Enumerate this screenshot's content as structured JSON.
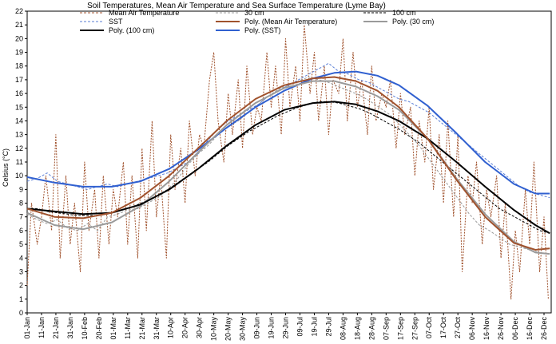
{
  "chart_data": {
    "type": "line",
    "title": "Soil Temperatures, Mean Air Temperature and Sea Surface Temperature (Lyme Bay)",
    "ylabel": "Celsius (°C)",
    "xlabel": "",
    "ylim": [
      0,
      22
    ],
    "y_ticks": [
      0,
      1,
      2,
      3,
      4,
      5,
      6,
      7,
      8,
      9,
      10,
      11,
      12,
      13,
      14,
      15,
      16,
      17,
      18,
      19,
      20,
      21,
      22
    ],
    "x_ticks": [
      {
        "day": 1,
        "label": "01-Jan"
      },
      {
        "day": 11,
        "label": "11-Jan"
      },
      {
        "day": 21,
        "label": "21-Jan"
      },
      {
        "day": 31,
        "label": "31-Jan"
      },
      {
        "day": 41,
        "label": "10-Feb"
      },
      {
        "day": 51,
        "label": "20-Feb"
      },
      {
        "day": 61,
        "label": "01-Mar"
      },
      {
        "day": 71,
        "label": "11-Mar"
      },
      {
        "day": 81,
        "label": "21-Mar"
      },
      {
        "day": 91,
        "label": "31-Mar"
      },
      {
        "day": 101,
        "label": "10-Apr"
      },
      {
        "day": 111,
        "label": "20-Apr"
      },
      {
        "day": 121,
        "label": "30-Apr"
      },
      {
        "day": 131,
        "label": "10-May"
      },
      {
        "day": 141,
        "label": "20-May"
      },
      {
        "day": 151,
        "label": "30-May"
      },
      {
        "day": 161,
        "label": "09-Jun"
      },
      {
        "day": 171,
        "label": "19-Jun"
      },
      {
        "day": 181,
        "label": "29-Jun"
      },
      {
        "day": 191,
        "label": "09-Jul"
      },
      {
        "day": 201,
        "label": "19-Jul"
      },
      {
        "day": 211,
        "label": "29-Jul"
      },
      {
        "day": 221,
        "label": "08-Aug"
      },
      {
        "day": 231,
        "label": "18-Aug"
      },
      {
        "day": 241,
        "label": "28-Aug"
      },
      {
        "day": 251,
        "label": "07-Sep"
      },
      {
        "day": 261,
        "label": "17-Sep"
      },
      {
        "day": 271,
        "label": "27-Sep"
      },
      {
        "day": 281,
        "label": "07-Oct"
      },
      {
        "day": 291,
        "label": "17-Oct"
      },
      {
        "day": 301,
        "label": "27-Oct"
      },
      {
        "day": 311,
        "label": "06-Nov"
      },
      {
        "day": 321,
        "label": "16-Nov"
      },
      {
        "day": 331,
        "label": "26-Nov"
      },
      {
        "day": 341,
        "label": "06-Dec"
      },
      {
        "day": 351,
        "label": "16-Dec"
      },
      {
        "day": 361,
        "label": "26-Dec"
      }
    ],
    "xlim_day": [
      1,
      366
    ],
    "legend_position": "top",
    "series": [
      {
        "name": "Mean Air Temperature",
        "color": "#a0522d",
        "style": "dashed-thin",
        "x_day": [
          1,
          4,
          8,
          11,
          14,
          18,
          21,
          24,
          28,
          31,
          34,
          38,
          41,
          44,
          48,
          51,
          54,
          58,
          61,
          64,
          68,
          71,
          74,
          78,
          81,
          84,
          88,
          91,
          94,
          98,
          101,
          104,
          108,
          111,
          114,
          118,
          121,
          124,
          128,
          131,
          134,
          138,
          141,
          144,
          148,
          151,
          154,
          158,
          161,
          164,
          168,
          171,
          174,
          178,
          181,
          184,
          188,
          191,
          194,
          198,
          201,
          204,
          208,
          211,
          214,
          218,
          221,
          224,
          228,
          231,
          234,
          238,
          241,
          244,
          248,
          251,
          254,
          258,
          261,
          264,
          268,
          271,
          274,
          278,
          281,
          284,
          288,
          291,
          294,
          298,
          301,
          304,
          308,
          311,
          314,
          318,
          321,
          324,
          328,
          331,
          334,
          338,
          341,
          344,
          348,
          351,
          354,
          358,
          361,
          364
        ],
        "values": [
          2,
          8,
          5,
          7,
          10,
          6,
          13,
          4,
          10,
          5,
          8,
          3,
          11,
          6,
          9,
          4,
          10,
          5,
          9,
          7,
          11,
          5,
          10,
          4,
          12,
          6,
          14,
          7,
          10,
          4,
          13,
          9,
          12,
          8,
          14,
          10,
          13,
          12,
          17,
          19,
          14,
          11,
          16,
          13,
          17,
          12,
          18,
          13,
          15,
          14,
          19,
          15,
          18,
          13,
          20,
          15,
          18,
          14,
          21,
          16,
          19,
          14,
          18,
          13,
          17,
          16,
          20,
          14,
          19,
          15,
          17,
          13,
          18,
          14,
          16,
          15,
          17,
          12,
          16,
          13,
          15,
          10,
          14,
          11,
          15,
          9,
          13,
          8,
          14,
          7,
          13,
          3,
          10,
          8,
          11,
          5,
          9,
          7,
          10,
          4,
          8,
          1,
          6,
          3,
          9,
          5,
          11,
          3,
          7,
          1
        ]
      },
      {
        "name": "30 cm",
        "color": "#9a9a9a",
        "style": "dashed-thin",
        "x_day": [
          1,
          8,
          15,
          22,
          29,
          36,
          43,
          50,
          57,
          64,
          71,
          78,
          85,
          92,
          99,
          106,
          113,
          120,
          127,
          134,
          141,
          148,
          155,
          162,
          169,
          176,
          183,
          190,
          197,
          204,
          211,
          218,
          225,
          232,
          239,
          246,
          253,
          260,
          267,
          274,
          281,
          288,
          295,
          302,
          309,
          316,
          323,
          330,
          337,
          344,
          351,
          358,
          365
        ],
        "values": [
          7.2,
          6.8,
          6.5,
          6.8,
          6.2,
          6.0,
          6.5,
          6.0,
          7.0,
          7.2,
          7.5,
          7.6,
          8.0,
          8.4,
          9.0,
          9.8,
          10.8,
          11.6,
          12.2,
          13.0,
          13.6,
          14.0,
          14.6,
          15.2,
          15.8,
          16.3,
          16.6,
          16.9,
          17.2,
          17.0,
          16.8,
          16.5,
          16.2,
          15.9,
          15.5,
          15.0,
          14.5,
          13.8,
          13.0,
          12.2,
          11.2,
          10.2,
          9.2,
          8.2,
          7.2,
          6.4,
          6.0,
          5.5,
          5.0,
          4.8,
          4.6,
          4.4,
          4.3
        ]
      },
      {
        "name": "100 cm",
        "color": "#000000",
        "style": "dashed-thin",
        "x_day": [
          1,
          8,
          15,
          22,
          29,
          36,
          43,
          50,
          57,
          64,
          71,
          78,
          85,
          92,
          99,
          106,
          113,
          120,
          127,
          134,
          141,
          148,
          155,
          162,
          169,
          176,
          183,
          190,
          197,
          204,
          211,
          218,
          225,
          232,
          239,
          246,
          253,
          260,
          267,
          274,
          281,
          288,
          295,
          302,
          309,
          316,
          323,
          330,
          337,
          344,
          351,
          358,
          365
        ],
        "values": [
          7.6,
          7.6,
          7.4,
          7.3,
          7.2,
          7.1,
          7.1,
          7.1,
          7.2,
          7.4,
          7.6,
          7.9,
          8.2,
          8.6,
          9.0,
          9.5,
          10.0,
          10.5,
          11.0,
          11.6,
          12.2,
          12.7,
          13.2,
          13.6,
          14.0,
          14.4,
          14.7,
          15.0,
          15.2,
          15.4,
          15.4,
          15.3,
          15.1,
          14.9,
          14.6,
          14.2,
          13.8,
          13.4,
          12.9,
          12.4,
          11.8,
          11.2,
          10.6,
          10.0,
          9.4,
          8.8,
          8.2,
          7.6,
          7.2,
          6.8,
          6.4,
          6.0,
          5.8
        ]
      },
      {
        "name": "SST",
        "color": "#5b7fd6",
        "style": "dashed-thin",
        "x_day": [
          1,
          8,
          15,
          22,
          29,
          36,
          43,
          50,
          57,
          64,
          71,
          78,
          85,
          92,
          99,
          106,
          113,
          120,
          127,
          134,
          141,
          148,
          155,
          162,
          169,
          176,
          183,
          190,
          197,
          204,
          211,
          218,
          225,
          232,
          239,
          246,
          253,
          260,
          267,
          274,
          281,
          288,
          295,
          302,
          309,
          316,
          323,
          330,
          337,
          344,
          351,
          358,
          365
        ],
        "values": [
          9.6,
          9.8,
          10.2,
          9.6,
          9.4,
          9.2,
          9.0,
          9.2,
          9.4,
          9.2,
          9.4,
          9.6,
          9.8,
          10.0,
          10.2,
          10.6,
          11.0,
          11.6,
          12.6,
          13.4,
          14.0,
          14.4,
          14.8,
          15.2,
          15.8,
          16.2,
          16.6,
          17.0,
          17.4,
          17.8,
          18.2,
          17.6,
          17.4,
          17.0,
          16.8,
          16.4,
          16.0,
          15.6,
          15.4,
          15.0,
          14.6,
          14.0,
          13.4,
          12.8,
          12.2,
          11.6,
          11.0,
          10.4,
          9.8,
          9.2,
          8.8,
          8.6,
          8.4
        ]
      },
      {
        "name": "Poly. (Mean Air Temperature)",
        "color": "#a0522d",
        "style": "solid-thick",
        "x_day": [
          1,
          20,
          40,
          60,
          80,
          100,
          120,
          140,
          160,
          180,
          200,
          215,
          230,
          245,
          260,
          280,
          300,
          320,
          340,
          355,
          365
        ],
        "values": [
          7.6,
          7.0,
          6.9,
          7.3,
          8.4,
          10.0,
          12.0,
          14.0,
          15.6,
          16.6,
          17.1,
          17.2,
          16.9,
          16.2,
          15.0,
          12.7,
          9.7,
          7.0,
          5.1,
          4.6,
          4.7
        ]
      },
      {
        "name": "Poly. (30 cm)",
        "color": "#9a9a9a",
        "style": "solid-thick",
        "x_day": [
          1,
          20,
          40,
          60,
          80,
          100,
          120,
          140,
          160,
          180,
          200,
          215,
          230,
          245,
          260,
          280,
          300,
          320,
          340,
          355,
          365
        ],
        "values": [
          7.3,
          6.4,
          6.1,
          6.6,
          7.8,
          9.6,
          11.7,
          13.7,
          15.3,
          16.4,
          16.9,
          16.9,
          16.5,
          15.8,
          14.8,
          12.7,
          9.8,
          7.2,
          5.2,
          4.4,
          4.3
        ]
      },
      {
        "name": "Poly. (100 cm)",
        "color": "#000000",
        "style": "solid-thick",
        "x_day": [
          1,
          20,
          40,
          60,
          80,
          100,
          120,
          140,
          160,
          180,
          200,
          215,
          230,
          245,
          260,
          280,
          300,
          320,
          340,
          355,
          365
        ],
        "values": [
          7.6,
          7.4,
          7.2,
          7.3,
          7.9,
          9.0,
          10.5,
          12.2,
          13.7,
          14.8,
          15.3,
          15.4,
          15.2,
          14.7,
          14.0,
          12.7,
          11.0,
          9.2,
          7.5,
          6.4,
          5.8
        ]
      },
      {
        "name": "Poly. (SST)",
        "color": "#3060d0",
        "style": "solid-thick",
        "x_day": [
          1,
          20,
          40,
          60,
          80,
          100,
          120,
          140,
          160,
          180,
          200,
          215,
          230,
          245,
          260,
          280,
          300,
          320,
          340,
          355,
          365
        ],
        "values": [
          9.9,
          9.5,
          9.2,
          9.2,
          9.6,
          10.5,
          11.9,
          13.5,
          15.0,
          16.2,
          17.1,
          17.5,
          17.6,
          17.3,
          16.6,
          15.1,
          13.1,
          11.0,
          9.4,
          8.7,
          8.7
        ]
      }
    ]
  }
}
